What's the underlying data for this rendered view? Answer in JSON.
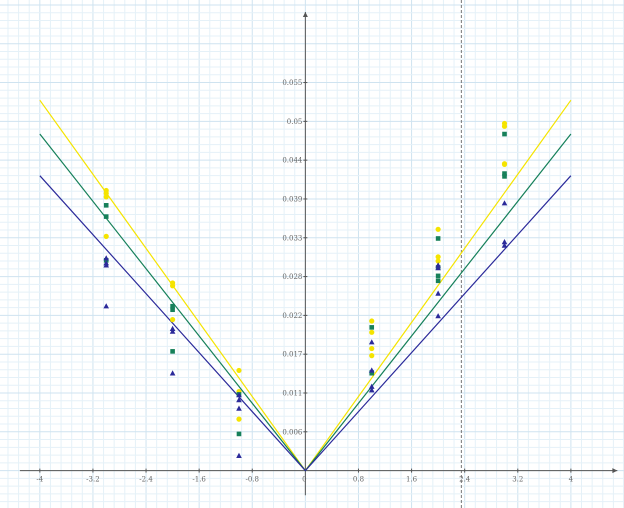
{
  "chart_data": {
    "type": "scatter",
    "title": "",
    "xlabel": "",
    "ylabel": "",
    "xlim": [
      -4.6,
      4.8
    ],
    "ylim": [
      -0.0053,
      0.0667
    ],
    "grid": true,
    "x_ticks": [
      {
        "value": -4,
        "label": "-4"
      },
      {
        "value": -3.2,
        "label": "-3.2"
      },
      {
        "value": -2.4,
        "label": "-2.4"
      },
      {
        "value": -1.6,
        "label": "-1.6"
      },
      {
        "value": -0.8,
        "label": "-0.8"
      },
      {
        "value": 0,
        "label": "0"
      },
      {
        "value": 0.8,
        "label": "0.8"
      },
      {
        "value": 1.6,
        "label": "1.6"
      },
      {
        "value": 2.4,
        "label": "2.4"
      },
      {
        "value": 3.2,
        "label": "3.2"
      },
      {
        "value": 4,
        "label": "4"
      }
    ],
    "y_ticks": [
      {
        "value": 0,
        "label": "0"
      },
      {
        "value": 0.0055,
        "label": "0.006"
      },
      {
        "value": 0.011,
        "label": "0.011"
      },
      {
        "value": 0.0165,
        "label": "0.017"
      },
      {
        "value": 0.022,
        "label": "0.022"
      },
      {
        "value": 0.0275,
        "label": "0.028"
      },
      {
        "value": 0.033,
        "label": "0.033"
      },
      {
        "value": 0.0385,
        "label": "0.039"
      },
      {
        "value": 0.044,
        "label": "0.044"
      },
      {
        "value": 0.0495,
        "label": "0.05"
      },
      {
        "value": 0.055,
        "label": "0.055"
      }
    ],
    "vertical_marker_x": 2.35,
    "colors": {
      "yellow": "#f5e400",
      "green": "#16805a",
      "blue": "#2b2a9a",
      "axis": "#555555",
      "grid_minor": "#e5f1f8",
      "grid_major": "#cfe3f0",
      "marker_line": "#777777"
    },
    "series": [
      {
        "color": "yellow",
        "marker": "circle",
        "line_x": [
          -4,
          0,
          4
        ],
        "line_y": [
          0.0525,
          0,
          0.0525
        ],
        "points": [
          [
            -3,
            0.0397
          ],
          [
            -3,
            0.0393
          ],
          [
            -3,
            0.0388
          ],
          [
            -3,
            0.0332
          ],
          [
            -2,
            0.0266
          ],
          [
            -2,
            0.0262
          ],
          [
            -2,
            0.0214
          ],
          [
            -1,
            0.0142
          ],
          [
            -1,
            0.0112
          ],
          [
            -1,
            0.0073
          ],
          [
            1,
            0.0212
          ],
          [
            1,
            0.0196
          ],
          [
            1,
            0.0173
          ],
          [
            1,
            0.0163
          ],
          [
            2,
            0.0342
          ],
          [
            2,
            0.0303
          ],
          [
            2,
            0.0297
          ],
          [
            3,
            0.0492
          ],
          [
            3,
            0.0488
          ],
          [
            3,
            0.0435
          ],
          [
            3,
            0.0434
          ]
        ]
      },
      {
        "color": "green",
        "marker": "square",
        "line_x": [
          -4,
          0,
          4
        ],
        "line_y": [
          0.0477,
          0,
          0.0477
        ],
        "points": [
          [
            -3,
            0.0376
          ],
          [
            -3,
            0.036
          ],
          [
            -3,
            0.0298
          ],
          [
            -2,
            0.0233
          ],
          [
            -2,
            0.0228
          ],
          [
            -2,
            0.0169
          ],
          [
            -1,
            0.0108
          ],
          [
            -1,
            0.0052
          ],
          [
            1,
            0.0203
          ],
          [
            1,
            0.0139
          ],
          [
            1,
            0.0138
          ],
          [
            2,
            0.0329
          ],
          [
            2,
            0.0288
          ],
          [
            2,
            0.0276
          ],
          [
            2,
            0.0269
          ],
          [
            3,
            0.0477
          ],
          [
            3,
            0.0421
          ],
          [
            3,
            0.0417
          ]
        ]
      },
      {
        "color": "blue",
        "marker": "triangle",
        "line_x": [
          -4,
          0,
          4
        ],
        "line_y": [
          0.0418,
          0,
          0.0418
        ],
        "points": [
          [
            -3,
            0.0301
          ],
          [
            -3,
            0.0294
          ],
          [
            -3,
            0.0291
          ],
          [
            -3,
            0.0233
          ],
          [
            -2,
            0.0201
          ],
          [
            -2,
            0.0197
          ],
          [
            -2,
            0.0138
          ],
          [
            -1,
            0.0107
          ],
          [
            -1,
            0.01
          ],
          [
            -1,
            0.0088
          ],
          [
            -1,
            0.0021
          ],
          [
            1,
            0.0182
          ],
          [
            1,
            0.0142
          ],
          [
            1,
            0.0119
          ],
          [
            1,
            0.0114
          ],
          [
            2,
            0.0291
          ],
          [
            2,
            0.0287
          ],
          [
            2,
            0.0251
          ],
          [
            2,
            0.0219
          ],
          [
            3,
            0.0379
          ],
          [
            3,
            0.0324
          ],
          [
            3,
            0.0319
          ]
        ]
      }
    ]
  }
}
